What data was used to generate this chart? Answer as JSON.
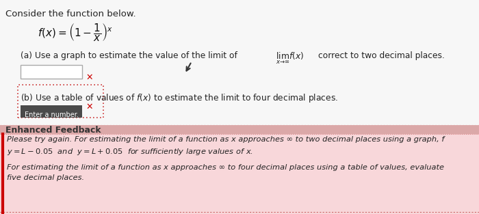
{
  "bg_color": "#f0f0f0",
  "title_text": "Consider the function below.",
  "formula_main": "$f(x) = \\left(1 - \\dfrac{1}{x}\\right)^{x}$",
  "part_a_text": "(a) Use a graph to estimate the value of the limit of   $\\lim_{x \\to \\infty}$  $f(x)$  correct to two decimal places.",
  "part_b_text": "(b) Use a table of values of $f(x)$ to estimate the limit to four decimal places.",
  "feedback_header": "Enhanced Feedback",
  "tooltip_text": "Enter a number.",
  "feedback_line1": "Please try again. For estimating the limit of a function as x approaches ∞ to two decimal places using a graph, f",
  "feedback_line2": "$y = L - 0.05$  and  $y = L + 0.05$  for sufficiently large values of x.",
  "feedback_line3": "For estimating the limit of a function as x approaches ∞ to four decimal places using a table of values, evaluate",
  "feedback_line4": "five decimal places.",
  "input_box_color": "#ffffff",
  "feedback_bg": "#f8d7da",
  "feedback_border_color": "#cc0000",
  "header_bg": "#dba8a8",
  "x_mark_color": "#cc0000",
  "tooltip_bg": "#4a4a4a",
  "tooltip_fg": "#ffffff",
  "dotted_color": "#cc3333"
}
